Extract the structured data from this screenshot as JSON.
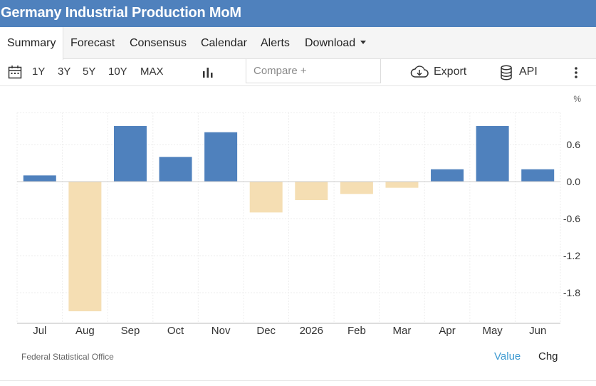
{
  "header": {
    "title": "Germany Industrial Production MoM"
  },
  "tabs": [
    {
      "label": "Summary",
      "active": true
    },
    {
      "label": "Forecast"
    },
    {
      "label": "Consensus"
    },
    {
      "label": "Calendar"
    },
    {
      "label": "Alerts"
    },
    {
      "label": "Download"
    }
  ],
  "toolbar": {
    "ranges": [
      "1Y",
      "3Y",
      "5Y",
      "10Y",
      "MAX"
    ],
    "compare_placeholder": "Compare +",
    "export_label": "Export",
    "api_label": "API"
  },
  "colors": {
    "header_bg": "#4f81bd",
    "positive_bar": "#4f81bd",
    "negative_bar": "#f5deb3",
    "link": "#3d9ad1"
  },
  "chart_data": {
    "type": "bar",
    "unit_label": "%",
    "categories": [
      "Jul",
      "Aug",
      "Sep",
      "Oct",
      "Nov",
      "Dec",
      "2026",
      "Feb",
      "Mar",
      "Apr",
      "May",
      "Jun"
    ],
    "values": [
      0.1,
      -2.1,
      0.9,
      0.4,
      0.8,
      -0.5,
      -0.3,
      -0.2,
      -0.1,
      0.2,
      0.9,
      0.2
    ],
    "yticks": [
      0.6,
      0.0,
      -0.6,
      -1.2,
      -1.8
    ],
    "ytick_labels": [
      "0.6",
      "0.0",
      "-0.6",
      "-1.2",
      "-1.8"
    ],
    "ylim": [
      -2.2,
      1.1
    ],
    "grid": true,
    "legend": "none"
  },
  "footer": {
    "source": "Federal Statistical Office",
    "value_label": "Value",
    "chg_label": "Chg"
  }
}
